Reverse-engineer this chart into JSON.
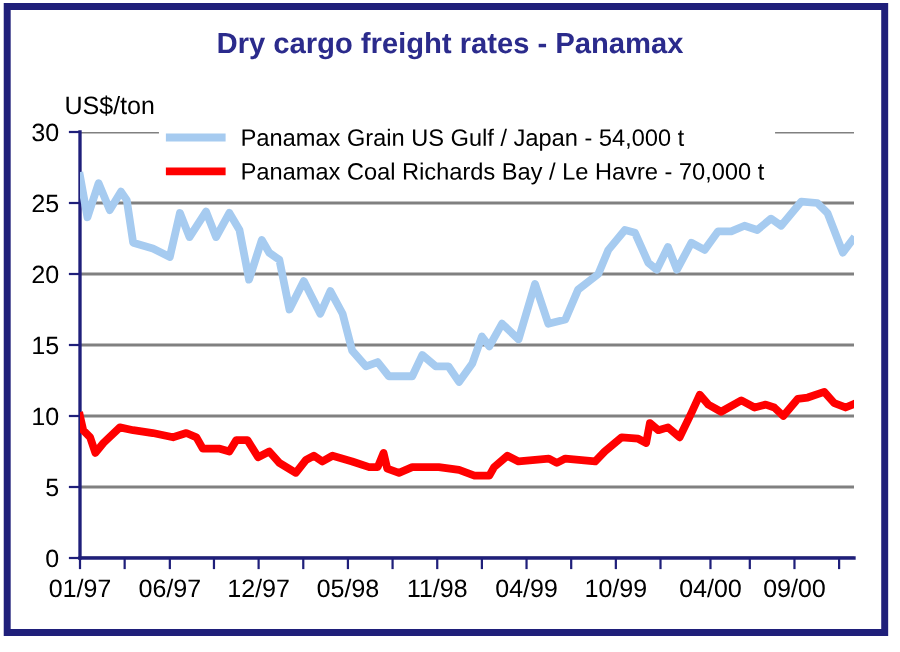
{
  "chart_data": {
    "type": "line",
    "title": "Dry cargo freight rates - Panamax",
    "ylabel": "US$/ton",
    "x": [
      "1997-01-01",
      "1997-01-15",
      "1997-02-05",
      "1997-02-26",
      "1997-03-19",
      "1997-03-30",
      "1997-04-11",
      "1997-05-18",
      "1997-06-19",
      "1997-07-08",
      "1997-07-26",
      "1997-08-26",
      "1997-09-14",
      "1997-10-09",
      "1997-10-28",
      "1997-11-15",
      "1997-12-09",
      "1997-12-23",
      "1998-01-11",
      "1998-01-30",
      "1998-02-26",
      "1998-03-29",
      "1998-04-17",
      "1998-05-10",
      "1998-05-28",
      "1998-06-23",
      "1998-07-15",
      "1998-08-05",
      "1998-09-18",
      "1998-10-07",
      "1998-11-01",
      "1998-11-25",
      "1998-12-15",
      "1999-01-09",
      "1999-01-27",
      "1999-02-10",
      "1999-03-06",
      "1999-04-06",
      "1999-05-07",
      "1999-06-01",
      "1999-07-03",
      "1999-07-27",
      "1999-09-03",
      "1999-09-22",
      "1999-10-23",
      "1999-11-11",
      "1999-12-06",
      "1999-12-22",
      "2000-01-12",
      "2000-01-29",
      "2000-02-25",
      "2000-03-21",
      "2000-04-15",
      "2000-05-10",
      "2000-06-04",
      "2000-06-28",
      "2000-07-24",
      "2000-08-12",
      "2000-09-19",
      "2000-10-19",
      "2000-11-07",
      "2000-12-06",
      "2000-12-24"
    ],
    "series": [
      {
        "name": "Panamax Grain US Gulf / Japan - 54,000 t",
        "color": "#a6cbf0",
        "values": [
          26.9,
          24.0,
          26.4,
          24.5,
          25.8,
          25.2,
          22.2,
          21.8,
          21.2,
          24.3,
          22.6,
          24.4,
          22.6,
          24.3,
          23.1,
          19.6,
          22.4,
          21.5,
          21.0,
          17.5,
          19.5,
          17.2,
          18.8,
          17.2,
          14.6,
          13.5,
          13.8,
          12.8,
          12.8,
          14.3,
          13.5,
          13.5,
          12.4,
          13.7,
          15.6,
          14.9,
          16.5,
          15.4,
          19.3,
          16.5,
          16.8,
          18.9,
          20.0,
          21.7,
          23.1,
          22.9,
          20.8,
          20.3,
          21.9,
          20.3,
          22.2,
          21.7,
          23.0,
          23.0,
          23.4,
          23.1,
          23.9,
          23.4,
          25.1,
          25.0,
          24.3,
          21.5,
          22.4
        ]
      },
      {
        "name": "Panamax Coal Richards Bay / Le Havre - 70,000 t",
        "color": "#ff0000",
        "x": [
          "1997-01-01",
          "1997-01-07",
          "1997-01-20",
          "1997-01-30",
          "1997-02-14",
          "1997-03-17",
          "1997-04-11",
          "1997-05-18",
          "1997-06-25",
          "1997-07-20",
          "1997-08-08",
          "1997-08-20",
          "1997-09-21",
          "1997-10-09",
          "1997-10-22",
          "1997-11-12",
          "1997-12-02",
          "1997-12-23",
          "1998-01-11",
          "1998-02-11",
          "1998-03-02",
          "1998-03-17",
          "1998-04-02",
          "1998-04-21",
          "1998-05-28",
          "1998-06-29",
          "1998-07-15",
          "1998-07-26",
          "1998-08-02",
          "1998-08-24",
          "1998-09-18",
          "1998-11-07",
          "1998-12-15",
          "1999-01-13",
          "1999-02-10",
          "1999-02-19",
          "1999-03-16",
          "1999-04-06",
          "1999-06-02",
          "1999-06-17",
          "1999-07-03",
          "1999-08-28",
          "1999-09-15",
          "1999-10-17",
          "1999-11-17",
          "1999-12-02",
          "1999-12-09",
          "1999-12-25",
          "2000-01-12",
          "2000-02-03",
          "2000-02-25",
          "2000-03-12",
          "2000-03-28",
          "2000-04-21",
          "2000-05-29",
          "2000-06-23",
          "2000-07-14",
          "2000-07-30",
          "2000-08-16",
          "2000-09-12",
          "2000-10-01",
          "2000-11-01",
          "2000-11-20",
          "2000-12-11",
          "2000-12-24"
        ],
        "values": [
          10.0,
          9.0,
          8.5,
          7.4,
          8.1,
          9.2,
          9.0,
          8.8,
          8.5,
          8.8,
          8.5,
          7.7,
          7.7,
          7.5,
          8.3,
          8.3,
          7.1,
          7.5,
          6.7,
          6.0,
          6.9,
          7.2,
          6.8,
          7.2,
          6.8,
          6.4,
          6.4,
          7.4,
          6.3,
          6.0,
          6.4,
          6.4,
          6.2,
          5.8,
          5.8,
          6.4,
          7.2,
          6.8,
          7.0,
          6.7,
          7.0,
          6.8,
          7.5,
          8.5,
          8.4,
          8.1,
          9.5,
          9.0,
          9.2,
          8.5,
          10.2,
          11.5,
          10.8,
          10.3,
          11.1,
          10.6,
          10.8,
          10.6,
          10.0,
          11.2,
          11.3,
          11.7,
          10.9,
          10.6,
          10.8
        ]
      }
    ],
    "xlim": [
      "1997-01-01",
      "2000-12-27"
    ],
    "ylim": [
      0,
      30
    ],
    "yticks": [
      0,
      5,
      10,
      15,
      20,
      25,
      30
    ],
    "xticks": [
      {
        "value": "1997-01-01",
        "label": "01/97"
      },
      {
        "value": "1997-03-26",
        "label": null
      },
      {
        "value": "1997-06-19",
        "label": "06/97"
      },
      {
        "value": "1997-09-10",
        "label": null
      },
      {
        "value": "1997-12-03",
        "label": "12/97"
      },
      {
        "value": "1998-02-25",
        "label": null
      },
      {
        "value": "1998-05-20",
        "label": "05/98"
      },
      {
        "value": "1998-08-12",
        "label": null
      },
      {
        "value": "1998-11-04",
        "label": "11/98"
      },
      {
        "value": "1999-01-27",
        "label": null
      },
      {
        "value": "1999-04-21",
        "label": "04/99"
      },
      {
        "value": "1999-07-14",
        "label": null
      },
      {
        "value": "1999-10-06",
        "label": "10/99"
      },
      {
        "value": "1999-12-29",
        "label": null
      },
      {
        "value": "2000-04-01",
        "label": "04/00"
      },
      {
        "value": "2000-06-14",
        "label": null
      },
      {
        "value": "2000-09-06",
        "label": "09/00"
      },
      {
        "value": "2000-11-29",
        "label": null
      }
    ],
    "grid": "y",
    "legend": "top",
    "marker": "none",
    "line_style": "solid"
  }
}
